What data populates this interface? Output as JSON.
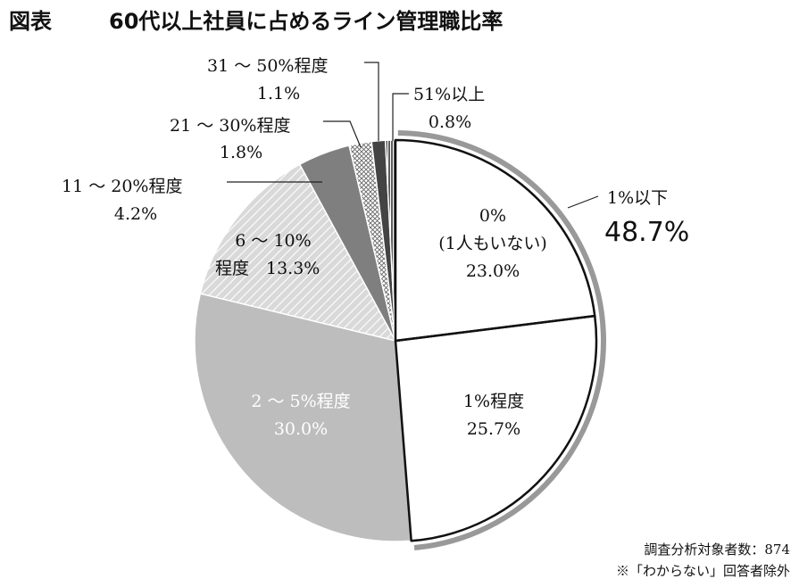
{
  "title": {
    "tag": "図表",
    "main": "60代以上社員に占めるライン管理職比率"
  },
  "chart_data": {
    "type": "pie",
    "title": "60代以上社員に占めるライン管理職比率",
    "slices": [
      {
        "key": "zero",
        "label_lines": [
          "0%",
          "(1人もいない)"
        ],
        "value": 23.0,
        "value_label": "23.0%",
        "color": "#ffffff",
        "pattern": "none"
      },
      {
        "key": "one",
        "label_lines": [
          "1%程度"
        ],
        "value": 25.7,
        "value_label": "25.7%",
        "color": "#ffffff",
        "pattern": "none"
      },
      {
        "key": "two5",
        "label_lines": [
          "2 ～ 5%程度"
        ],
        "value": 30.0,
        "value_label": "30.0%",
        "color": "#bdbdbd",
        "pattern": "none"
      },
      {
        "key": "six10",
        "label_lines": [
          "6 ～ 10%",
          "程度"
        ],
        "value": 13.3,
        "value_label": "13.3%",
        "color": "#d6d6d6",
        "pattern": "diagonal-hatch"
      },
      {
        "key": "e1120",
        "label_lines": [
          "11 ～ 20%程度"
        ],
        "value": 4.2,
        "value_label": "4.2%",
        "color": "#7f7f7f",
        "pattern": "none"
      },
      {
        "key": "e2130",
        "label_lines": [
          "21 ～ 30%程度"
        ],
        "value": 1.8,
        "value_label": "1.8%",
        "color": "#e5e5e5",
        "pattern": "crosshatch"
      },
      {
        "key": "e3150",
        "label_lines": [
          "31 ～ 50%程度"
        ],
        "value": 1.1,
        "value_label": "1.1%",
        "color": "#444444",
        "pattern": "none"
      },
      {
        "key": "e51",
        "label_lines": [
          "51%以上"
        ],
        "value": 0.8,
        "value_label": "0.8%",
        "color": "#555555",
        "pattern": "vertical-lines"
      }
    ],
    "group": {
      "label": "1%以下",
      "value": 48.7,
      "value_label": "48.7%",
      "members": [
        "zero",
        "one"
      ],
      "color": "#999999"
    },
    "legend": "none",
    "start_angle": "12 o'clock",
    "direction": "clockwise"
  },
  "notes": [
    "調査分析対象者数：874",
    "※「わからない」回答者除外"
  ]
}
